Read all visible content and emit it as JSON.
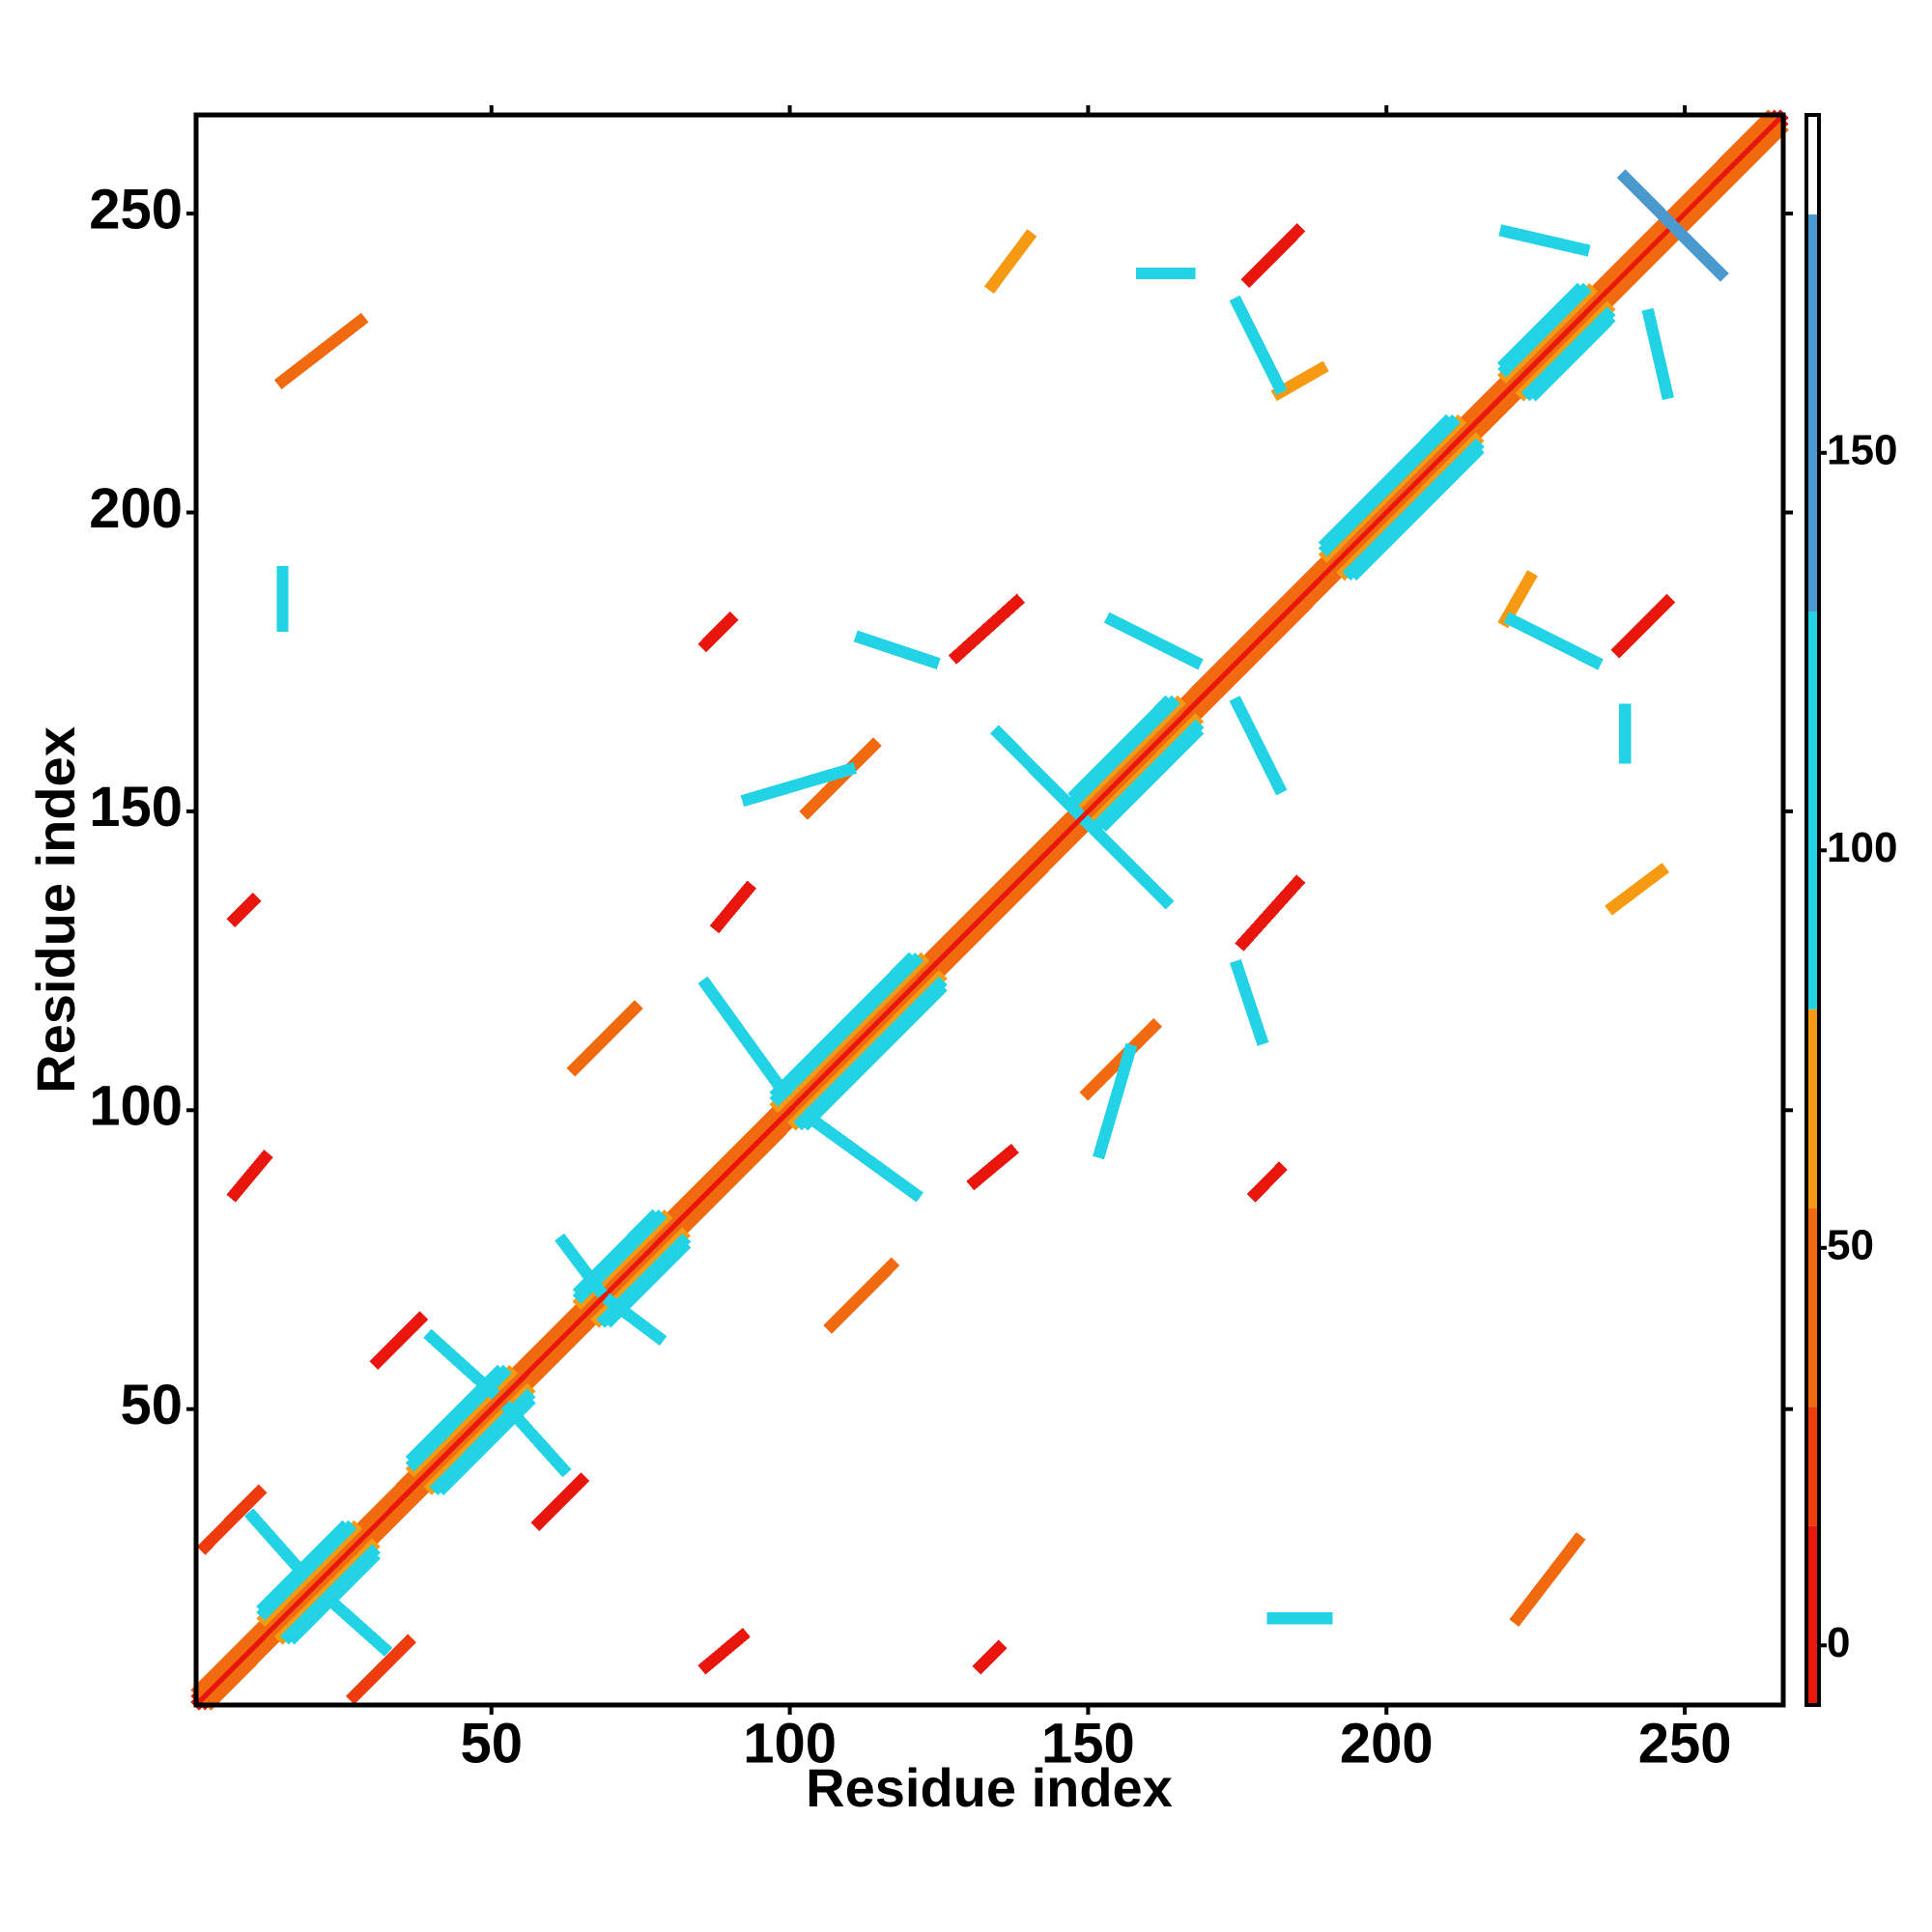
{
  "chart_data": {
    "type": "contact-map",
    "xlabel": "Residue index",
    "ylabel": "Residue index",
    "xlim": [
      0.5,
      266.5
    ],
    "ylim": [
      0.5,
      266.5
    ],
    "xticks": [
      50,
      100,
      150,
      200,
      250
    ],
    "yticks": [
      50,
      100,
      150,
      200,
      250
    ],
    "symmetric": true,
    "colorbar": {
      "lim": [
        -7.5,
        192.5
      ],
      "ticks": [
        0,
        50,
        100,
        150
      ],
      "bins": [
        {
          "from": -7.5,
          "to": 15,
          "color": "#e8160c"
        },
        {
          "from": 15,
          "to": 30,
          "color": "#ee3c0e"
        },
        {
          "from": 30,
          "to": 55,
          "color": "#f26a10"
        },
        {
          "from": 55,
          "to": 80,
          "color": "#f59a12"
        },
        {
          "from": 80,
          "to": 130,
          "color": "#22d3e6"
        },
        {
          "from": 130,
          "to": 180,
          "color": "#4a9ad0"
        },
        {
          "from": 180,
          "to": 192.5,
          "color": "#ffffff"
        }
      ]
    },
    "contacts": [
      [
        1,
        1,
        266,
        266,
        0
      ],
      [
        1,
        2,
        265,
        266,
        10
      ],
      [
        1,
        3,
        264,
        266,
        40
      ],
      [
        12,
        15,
        27,
        30,
        60
      ],
      [
        12,
        16,
        26,
        30,
        100
      ],
      [
        12,
        17,
        25,
        30,
        110
      ],
      [
        37,
        40,
        53,
        56,
        60
      ],
      [
        37,
        41,
        52,
        56,
        100
      ],
      [
        37,
        42,
        51,
        56,
        110
      ],
      [
        65,
        68,
        79,
        82,
        60
      ],
      [
        65,
        69,
        78,
        82,
        100
      ],
      [
        65,
        70,
        77,
        82,
        110
      ],
      [
        98,
        101,
        122,
        125,
        60
      ],
      [
        98,
        102,
        121,
        125,
        100
      ],
      [
        98,
        103,
        120,
        125,
        110
      ],
      [
        148,
        151,
        165,
        168,
        60
      ],
      [
        148,
        152,
        164,
        168,
        100
      ],
      [
        148,
        153,
        163,
        168,
        110
      ],
      [
        190,
        193,
        212,
        215,
        60
      ],
      [
        190,
        194,
        211,
        215,
        100
      ],
      [
        190,
        195,
        210,
        215,
        110
      ],
      [
        220,
        223,
        234,
        237,
        60
      ],
      [
        220,
        224,
        233,
        237,
        100
      ],
      [
        220,
        225,
        232,
        237,
        110
      ],
      [
        240,
        256,
        256,
        240,
        170
      ],
      [
        2,
        27,
        11,
        36,
        15
      ],
      [
        7,
        86,
        12,
        92,
        5
      ],
      [
        31,
        58,
        38,
        65,
        10
      ],
      [
        88,
        131,
        93,
        137,
        5
      ],
      [
        128,
        176,
        138,
        185,
        8
      ],
      [
        177,
        239,
        185,
        247,
        5
      ],
      [
        7,
        132,
        10,
        135,
        10
      ],
      [
        86,
        178,
        90,
        182,
        10
      ],
      [
        86,
        121,
        99,
        103,
        100
      ],
      [
        135,
        163,
        148,
        150,
        100
      ],
      [
        40,
        62,
        50,
        53,
        100
      ],
      [
        62,
        78,
        68,
        70,
        100
      ],
      [
        10,
        32,
        18,
        23,
        100
      ],
      [
        64,
        107,
        74,
        117,
        45
      ],
      [
        103,
        150,
        114,
        161,
        50
      ],
      [
        15,
        222,
        28,
        232,
        45
      ],
      [
        134,
        238,
        140,
        246,
        55
      ],
      [
        182,
        220,
        189,
        224,
        60
      ],
      [
        15,
        184,
        15,
        190,
        95
      ],
      [
        159,
        240,
        167,
        240,
        95
      ],
      [
        175,
        235,
        182,
        221,
        95
      ],
      [
        220,
        247,
        233,
        244,
        95
      ],
      [
        15,
        181,
        15,
        187,
        110
      ],
      [
        154,
        182,
        168,
        175,
        95
      ],
      [
        112,
        179,
        124,
        175,
        95
      ],
      [
        93,
        152,
        110,
        157,
        95
      ]
    ]
  }
}
